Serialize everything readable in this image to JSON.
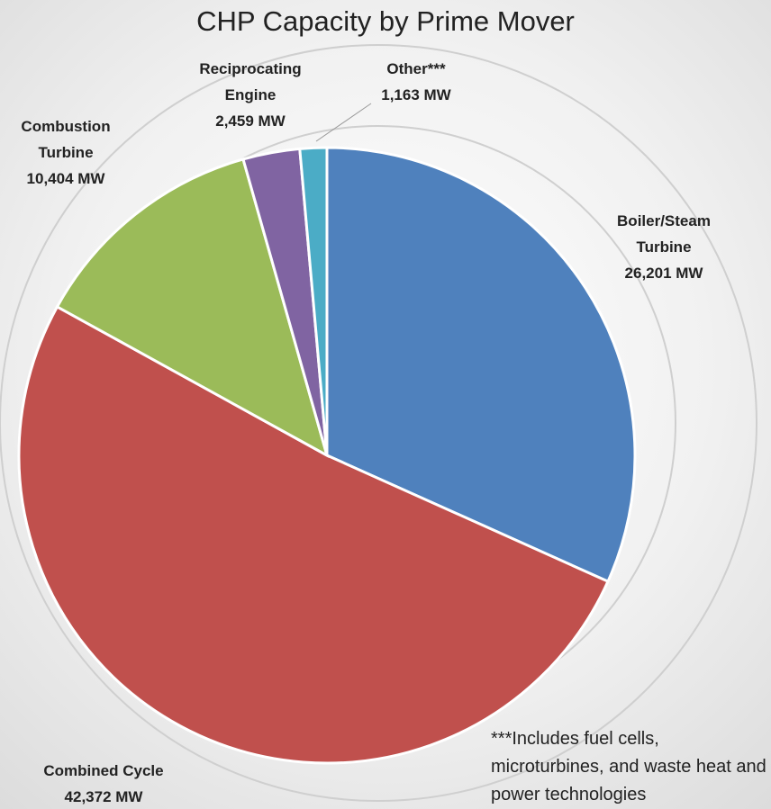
{
  "chart_data": {
    "type": "pie",
    "title": "CHP Capacity by Prime Mover",
    "categories": [
      "Boiler/Steam Turbine",
      "Combined Cycle",
      "Combustion Turbine",
      "Reciprocating Engine",
      "Other***"
    ],
    "values": [
      26201,
      42372,
      10404,
      2459,
      1163
    ],
    "value_labels": [
      "26,201 MW",
      "42,372 MW",
      "10,404 MW",
      "2,459 MW",
      "1,163 MW"
    ],
    "colors": [
      "#4f81bd",
      "#c0504d",
      "#9bbb59",
      "#8064a2",
      "#4bacc6"
    ],
    "annotation": "***Includes fuel cells, microturbines, and waste heat and power technologies"
  }
}
